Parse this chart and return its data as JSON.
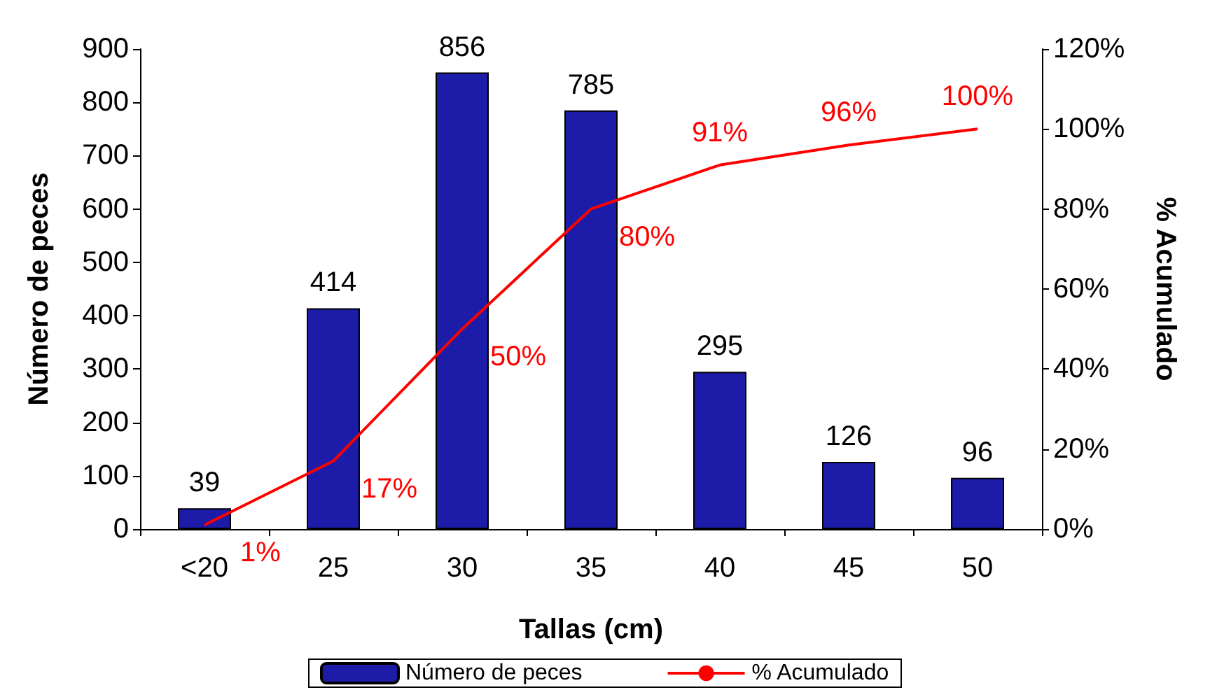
{
  "chart_data": {
    "type": "bar",
    "xlabel": "Tallas (cm)",
    "ylabel": "Número de peces",
    "y2label": "% Acumulado",
    "categories": [
      "<20",
      "25",
      "30",
      "35",
      "40",
      "45",
      "50"
    ],
    "series": [
      {
        "name": "Número de peces",
        "color": "#1c1ca8",
        "values": [
          39,
          414,
          856,
          785,
          295,
          126,
          96
        ],
        "value_labels": [
          "39",
          "414",
          "856",
          "785",
          "295",
          "126",
          "96"
        ]
      },
      {
        "name": "% Acumulado",
        "type": "line",
        "axis": "y2",
        "color": "#ff0000",
        "values": [
          1,
          17,
          50,
          80,
          91,
          96,
          100
        ],
        "value_labels": [
          "1%",
          "17%",
          "50%",
          "80%",
          "91%",
          "96%",
          "100%"
        ]
      }
    ],
    "ylim": [
      0,
      900
    ],
    "yticks": [
      0,
      100,
      200,
      300,
      400,
      500,
      600,
      700,
      800,
      900
    ],
    "y2lim": [
      0,
      120
    ],
    "y2ticks": [
      {
        "value": 0,
        "label": "0%"
      },
      {
        "value": 20,
        "label": "20%"
      },
      {
        "value": 40,
        "label": "40%"
      },
      {
        "value": 60,
        "label": "60%"
      },
      {
        "value": 80,
        "label": "80%"
      },
      {
        "value": 100,
        "label": "100%"
      },
      {
        "value": 120,
        "label": "120%"
      }
    ],
    "grid": false,
    "legend": "bottom",
    "marker": "none",
    "line_style": "solid"
  }
}
